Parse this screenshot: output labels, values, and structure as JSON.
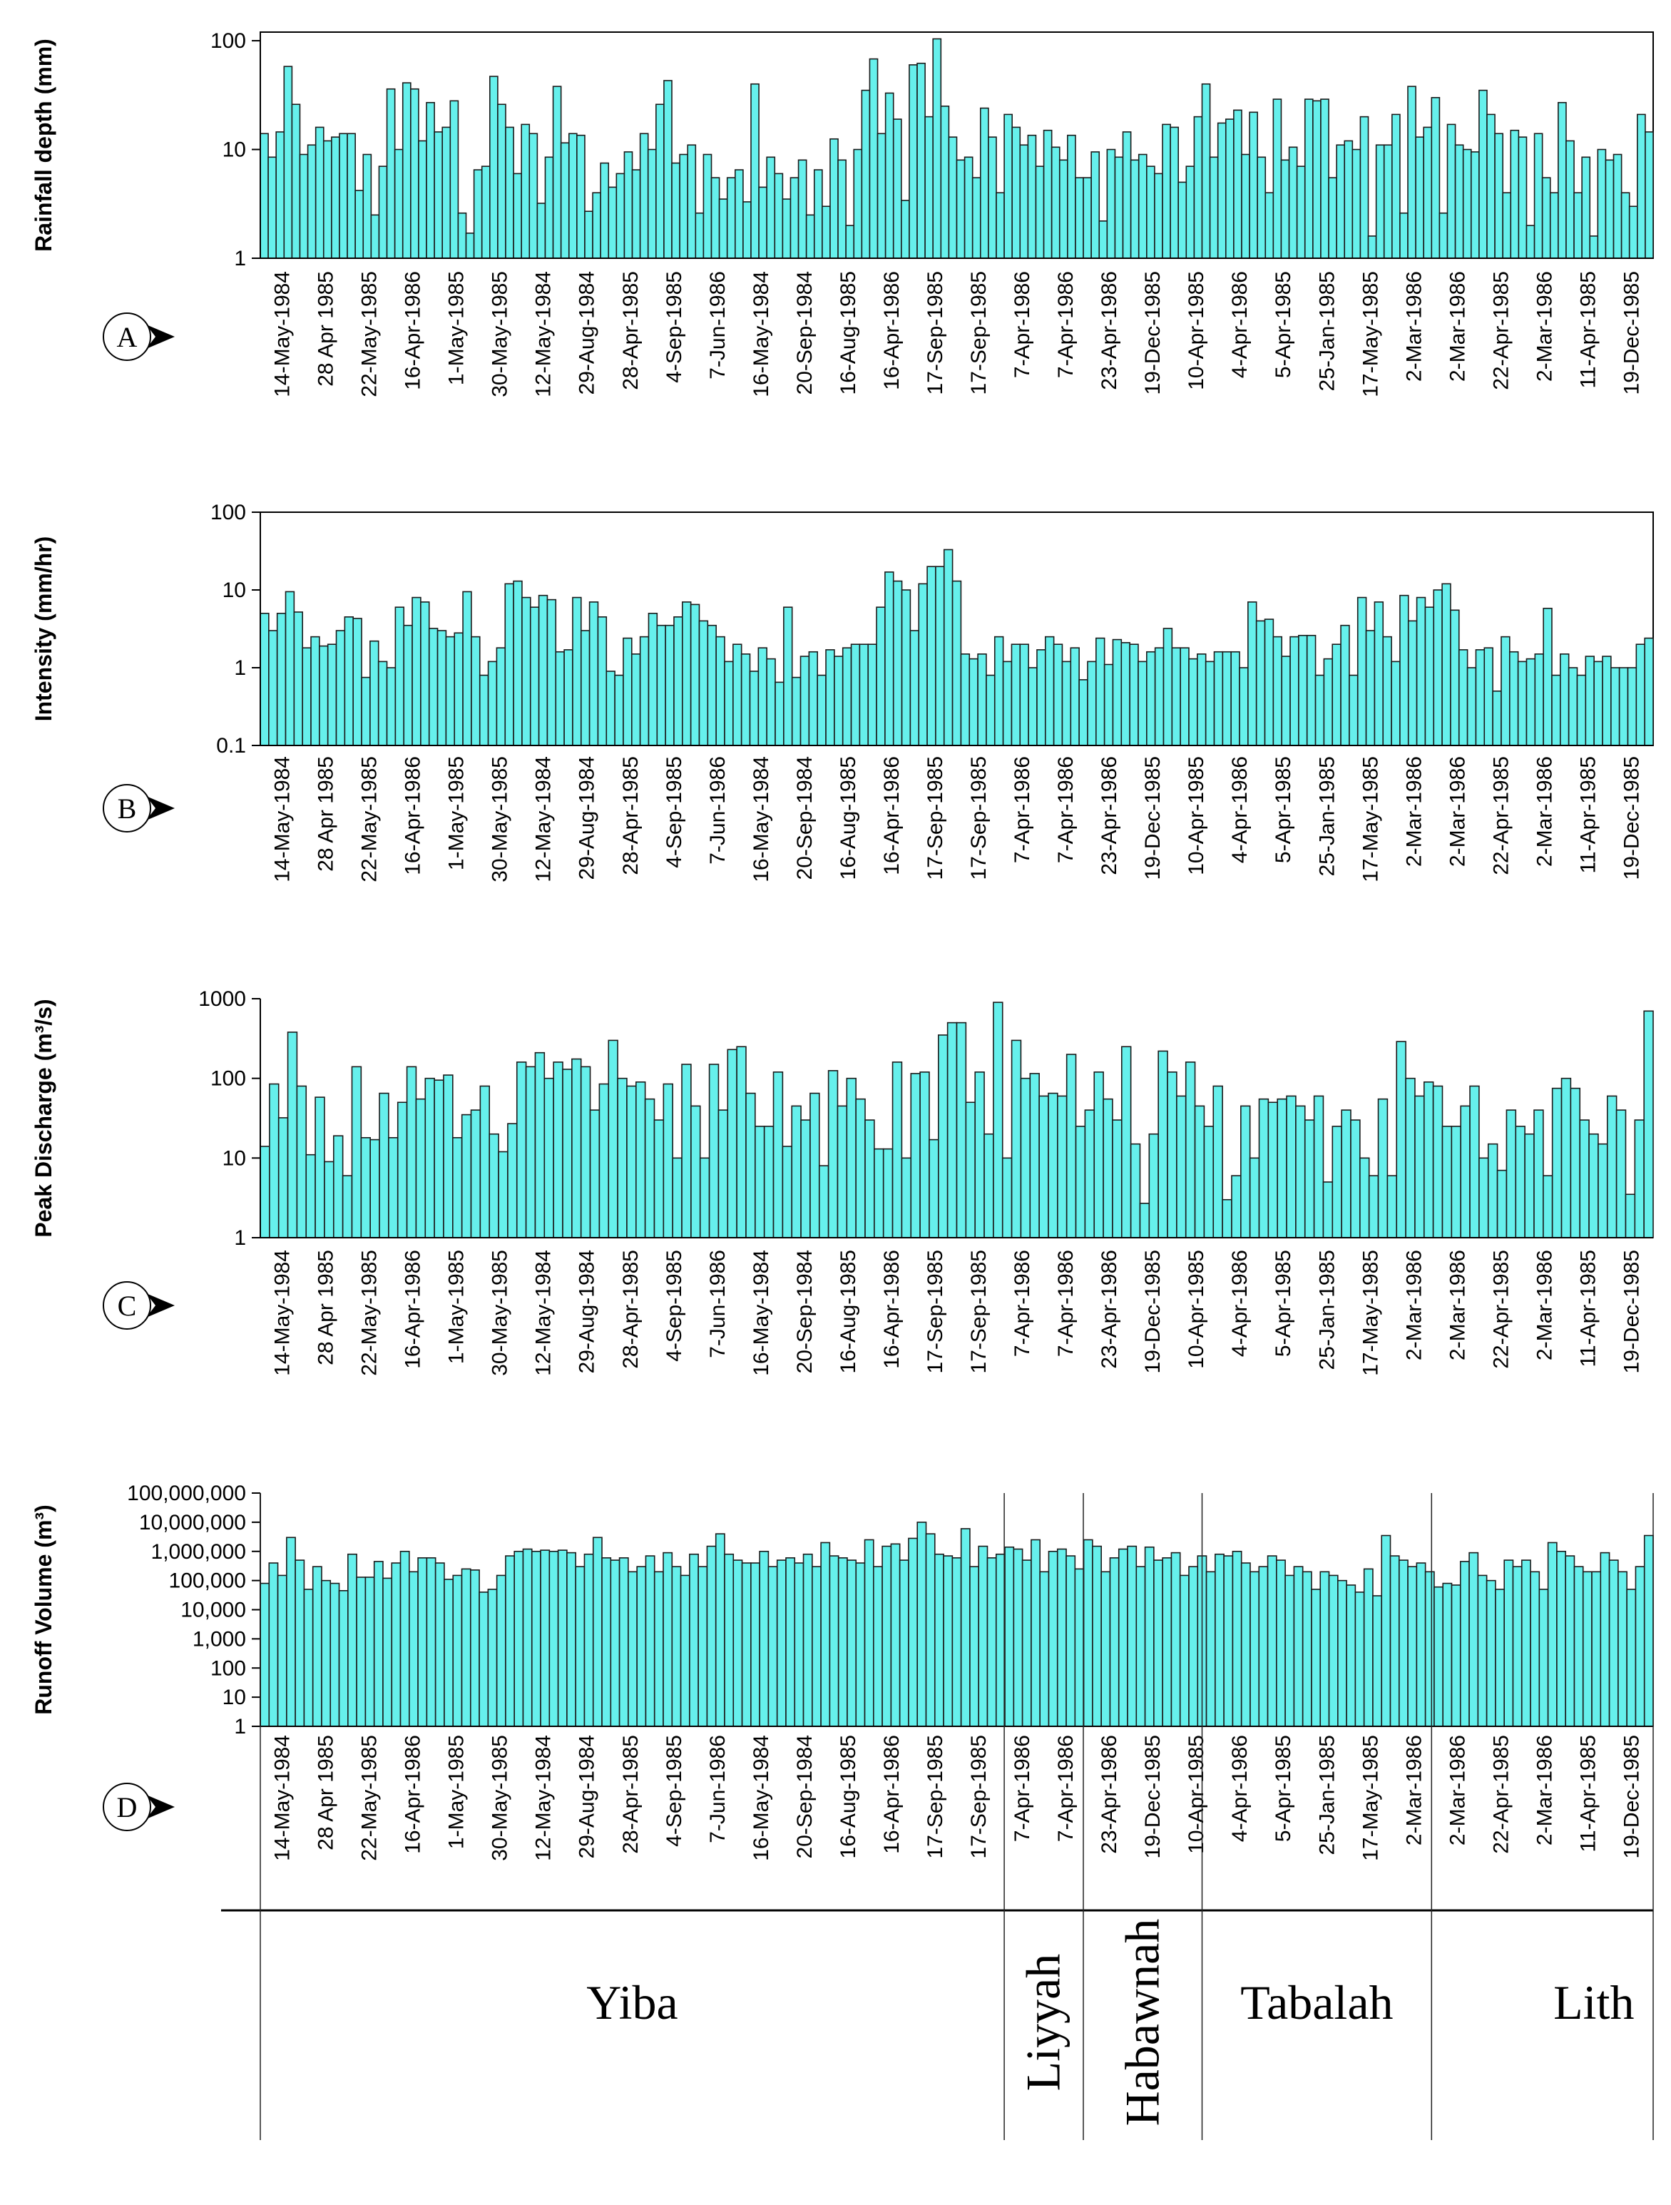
{
  "chart_data": {
    "type": "bar",
    "yscale": "log",
    "x_tick_labels": [
      "14-May-1984",
      "28 Apr 1985",
      "22-May-1985",
      "16-Apr-1986",
      "1-May-1985",
      "30-May-1985",
      "12-May-1984",
      "29-Aug-1984",
      "28-Apr-1985",
      "4-Sep-1985",
      "7-Jun-1986",
      "16-May-1984",
      "20-Sep-1984",
      "16-Aug-1985",
      "16-Apr-1986",
      "17-Sep-1985",
      "17-Sep-1985",
      "7-Apr-1986",
      "7-Apr-1986",
      "23-Apr-1986",
      "19-Dec-1985",
      "10-Apr-1985",
      "4-Apr-1986",
      "5-Apr-1985",
      "25-Jan-1985",
      "17-May-1985",
      "2-Mar-1986",
      "2-Mar-1986",
      "22-Apr-1985",
      "2-Mar-1986",
      "11-Apr-1985",
      "19-Dec-1985"
    ],
    "regions": [
      {
        "name": "Yiba",
        "start_event": 0,
        "end_event": 93,
        "vertical": false
      },
      {
        "name": "Liyyah",
        "start_event": 94,
        "end_event": 103,
        "vertical": true
      },
      {
        "name": "Habawnah",
        "start_event": 104,
        "end_event": 118,
        "vertical": true
      },
      {
        "name": "Tabalah",
        "start_event": 119,
        "end_event": 147,
        "vertical": false
      },
      {
        "name": "Lith",
        "start_event": 148,
        "end_event": 188,
        "vertical": false
      }
    ],
    "panels": [
      {
        "letter": "A",
        "ylabel": "Rainfall depth (mm)",
        "ylim": [
          1,
          120
        ],
        "yticks": [
          1,
          10,
          100
        ],
        "ytick_labels": [
          "1",
          "10",
          "100"
        ],
        "values": [
          14,
          8.5,
          14.5,
          58,
          26,
          9,
          11,
          16,
          12,
          13,
          14,
          14,
          4.2,
          9,
          2.5,
          7,
          36,
          10,
          41,
          36,
          12,
          27,
          14.5,
          16,
          28,
          2.6,
          1.7,
          6.5,
          7,
          47,
          26,
          16,
          6,
          17,
          14,
          3.2,
          8.5,
          38,
          11.5,
          14,
          13.5,
          2.7,
          4,
          7.5,
          4.5,
          6,
          9.5,
          6.5,
          14,
          10,
          26,
          43,
          7.5,
          9,
          11,
          2.6,
          9,
          5.5,
          3.5,
          5.5,
          6.5,
          3.3,
          40,
          4.5,
          8.5,
          6,
          3.5,
          5.5,
          8,
          2.5,
          6.5,
          3,
          12.5,
          8,
          2,
          10,
          35,
          68,
          14,
          33,
          19,
          3.4,
          60,
          62,
          20,
          104,
          25,
          13,
          8,
          8.5,
          5.5,
          24,
          13,
          4,
          21,
          16,
          11,
          13.5,
          7,
          15,
          10.5,
          8,
          13.5,
          5.5,
          5.5,
          9.5,
          2.2,
          10,
          8.5,
          14.5,
          8,
          9,
          7,
          6,
          17,
          16,
          5,
          7,
          20,
          40,
          8.5,
          17.5,
          19,
          23,
          9,
          22,
          8.5,
          4,
          29,
          8,
          10.5,
          7,
          29,
          28,
          29,
          5.5,
          11,
          12,
          10,
          20,
          1.6,
          11,
          11,
          21,
          2.6,
          38,
          13,
          16,
          30,
          2.6,
          17,
          11,
          10,
          9.5,
          35,
          21,
          14,
          4,
          15,
          13,
          2,
          14,
          5.5,
          4,
          27,
          12,
          4,
          8.5,
          1.6,
          10,
          8,
          9,
          4,
          3,
          21,
          14.5
        ]
      },
      {
        "letter": "B",
        "ylabel": "Intensity (mm/hr)",
        "ylim": [
          0.1,
          100
        ],
        "yticks": [
          0.1,
          1,
          10,
          100
        ],
        "ytick_labels": [
          "0.1",
          "1",
          "10",
          "100"
        ],
        "values": [
          5,
          3,
          5,
          9.5,
          5.2,
          1.8,
          2.5,
          1.9,
          2,
          3,
          4.5,
          4.3,
          0.75,
          2.2,
          1.2,
          1,
          6,
          3.5,
          8,
          7,
          3.2,
          3,
          2.5,
          2.8,
          9.5,
          2.5,
          0.8,
          1.2,
          1.8,
          12,
          13,
          8,
          6,
          8.5,
          7.5,
          1.6,
          1.7,
          8,
          3,
          7,
          4.5,
          0.9,
          0.8,
          2.4,
          1.5,
          2.5,
          5,
          3.5,
          3.5,
          4.5,
          7,
          6.5,
          4,
          3.5,
          2.5,
          1.2,
          2,
          1.5,
          0.9,
          1.8,
          1.3,
          0.65,
          6,
          0.75,
          1.4,
          1.6,
          0.8,
          1.7,
          1.4,
          1.8,
          2,
          2,
          2,
          6,
          17,
          13,
          10,
          3,
          12,
          20,
          20,
          33,
          13,
          1.5,
          1.3,
          1.5,
          0.8,
          2.5,
          1.2,
          2,
          2,
          1,
          1.7,
          2.5,
          2,
          1.2,
          1.8,
          0.7,
          1.2,
          2.4,
          1.1,
          2.3,
          2.1,
          2,
          1.2,
          1.6,
          1.8,
          3.2,
          1.8,
          1.8,
          1.3,
          1.5,
          1.2,
          1.6,
          1.6,
          1.6,
          1,
          7,
          4,
          4.2,
          2.5,
          1.4,
          2.5,
          2.6,
          2.6,
          0.8,
          1.3,
          2,
          3.5,
          0.8,
          8,
          3,
          7,
          2.5,
          1.2,
          8.5,
          4,
          8,
          6,
          10,
          12,
          5.5,
          1.7,
          1,
          1.7,
          1.8,
          0.5,
          2.5,
          1.6,
          1.2,
          1.3,
          1.5,
          5.8,
          0.8,
          1.5,
          1,
          0.8,
          1.4,
          1.2,
          1.4,
          1,
          1,
          1,
          2,
          2.4
        ]
      },
      {
        "letter": "C",
        "ylabel": "Peak Discharge (m³/s)",
        "ylim": [
          1,
          1000
        ],
        "yticks": [
          1,
          10,
          100,
          1000
        ],
        "ytick_labels": [
          "1",
          "10",
          "100",
          "1000"
        ],
        "values": [
          14,
          85,
          32,
          380,
          80,
          11,
          58,
          9,
          19,
          6,
          140,
          18,
          17,
          65,
          18,
          50,
          140,
          55,
          100,
          95,
          110,
          18,
          35,
          40,
          80,
          20,
          12,
          27,
          160,
          140,
          210,
          100,
          160,
          130,
          175,
          140,
          40,
          85,
          300,
          100,
          80,
          90,
          55,
          30,
          85,
          10,
          150,
          45,
          10,
          150,
          40,
          230,
          250,
          65,
          25,
          25,
          120,
          14,
          45,
          30,
          65,
          8,
          125,
          45,
          100,
          55,
          30,
          13,
          13,
          160,
          10,
          115,
          120,
          17,
          350,
          500,
          500,
          50,
          120,
          20,
          900,
          10,
          300,
          100,
          115,
          60,
          65,
          60,
          200,
          25,
          40,
          120,
          55,
          30,
          250,
          15,
          2.7,
          20,
          220,
          120,
          60,
          160,
          45,
          25,
          80,
          3,
          6,
          45,
          10,
          55,
          50,
          55,
          60,
          45,
          30,
          60,
          5,
          25,
          40,
          30,
          10,
          6,
          55,
          6,
          290,
          100,
          60,
          90,
          80,
          25,
          25,
          45,
          80,
          10,
          15,
          7,
          40,
          25,
          20,
          40,
          6,
          75,
          100,
          75,
          30,
          20,
          15,
          60,
          40,
          3.5,
          30,
          700
        ]
      },
      {
        "letter": "D",
        "ylabel": "Runoff Volume (m³)",
        "ylim": [
          1,
          100000000
        ],
        "yticks": [
          1,
          10,
          100,
          1000,
          10000,
          100000,
          1000000,
          10000000,
          100000000
        ],
        "ytick_labels": [
          "1",
          "10",
          "100",
          "1,000",
          "10,000",
          "100,000",
          "1,000,000",
          "10,000,000",
          "100,000,000"
        ],
        "values": [
          80000,
          400000,
          150000,
          3000000,
          500000,
          50000,
          300000,
          100000,
          80000,
          45000,
          800000,
          130000,
          130000,
          450000,
          120000,
          400000,
          1000000,
          200000,
          600000,
          600000,
          400000,
          110000,
          150000,
          250000,
          230000,
          40000,
          50000,
          150000,
          700000,
          1000000,
          1200000,
          1000000,
          1100000,
          1000000,
          1100000,
          900000,
          300000,
          800000,
          3000000,
          600000,
          500000,
          600000,
          200000,
          300000,
          700000,
          200000,
          900000,
          300000,
          150000,
          800000,
          300000,
          1500000,
          4000000,
          800000,
          500000,
          400000,
          400000,
          1000000,
          300000,
          500000,
          600000,
          400000,
          800000,
          300000,
          2000000,
          700000,
          600000,
          500000,
          400000,
          2500000,
          300000,
          1500000,
          1800000,
          500000,
          2800000,
          10000000,
          4000000,
          800000,
          700000,
          600000,
          6000000,
          300000,
          1500000,
          600000,
          800000,
          1400000,
          1200000,
          500000,
          2500000,
          200000,
          1000000,
          1200000,
          700000,
          250000,
          2500000,
          1500000,
          200000,
          600000,
          1200000,
          1500000,
          300000,
          1400000,
          500000,
          600000,
          900000,
          150000,
          300000,
          700000,
          200000,
          800000,
          700000,
          1000000,
          400000,
          200000,
          300000,
          700000,
          500000,
          150000,
          300000,
          200000,
          50000,
          200000,
          150000,
          100000,
          70000,
          40000,
          250000,
          30000,
          3500000,
          700000,
          500000,
          300000,
          400000,
          200000,
          60000,
          80000,
          70000,
          450000,
          900000,
          150000,
          100000,
          50000,
          500000,
          300000,
          500000,
          200000,
          50000,
          2000000,
          1000000,
          700000,
          300000,
          200000,
          200000,
          900000,
          500000,
          200000,
          50000,
          300000,
          3500000
        ]
      }
    ]
  }
}
